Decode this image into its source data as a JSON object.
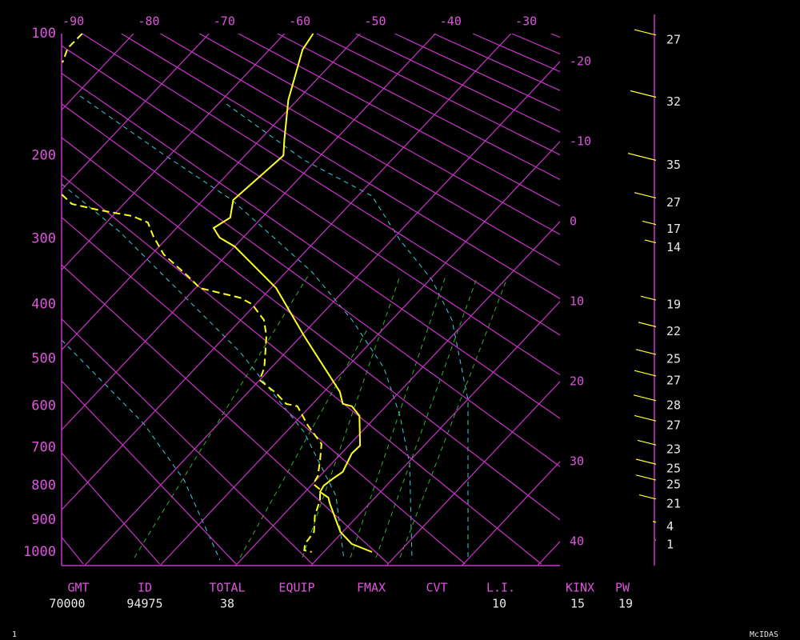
{
  "chart_data": {
    "type": "skewt",
    "ylim": [
      100,
      1045
    ],
    "yticks": [
      100,
      200,
      300,
      400,
      500,
      600,
      700,
      800,
      900,
      1000
    ],
    "xticks_top": [
      -90,
      -80,
      -70,
      -60,
      -50,
      -40,
      -30
    ],
    "xticks_right": [
      -20,
      -10,
      0,
      10,
      20,
      30,
      40
    ],
    "axis_color": "#cc33cc",
    "temperature": {
      "color": "#ffff20",
      "pressure": [
        100,
        110.5,
        148.3,
        184.6,
        200,
        226.3,
        249.7,
        271.6,
        285.2,
        298.2,
        310.5,
        373.3,
        456.3,
        568.7,
        595.3,
        600.8,
        622.6,
        694.3,
        714.7,
        762.7,
        778.1,
        800,
        817.8,
        834,
        852,
        936.3,
        974,
        1000
      ],
      "values": [
        -56.2,
        -55.6,
        -51.2,
        -46.7,
        -44.9,
        -45.5,
        -46.0,
        -44.2,
        -45.1,
        -43.1,
        -40.0,
        -29.3,
        -19.6,
        -7.9,
        -6.0,
        -4.5,
        -2.3,
        1.5,
        1.4,
        2.5,
        2.1,
        1.7,
        2.0,
        3.8,
        4.8,
        9.7,
        12.7,
        16.4
      ]
    },
    "dewpoint": {
      "color": "#ffff20",
      "pressure": [
        100,
        109.5,
        119.4,
        null,
        243.1,
        254.5,
        261.6,
        269.6,
        277.9,
        296.0,
        321.9,
        354.3,
        373.3,
        389.0,
        399.7,
        427.5,
        456.3,
        518.3,
        543.4,
        572.3,
        595.3,
        600.8,
        645.6,
        690.4,
        731.1,
        773.4,
        795.6,
        811,
        840.8,
        887.3,
        936.3,
        974,
        994.6,
        1000
      ],
      "values": [
        -86.8,
        -86.9,
        -85.8,
        null,
        -69.4,
        -66.9,
        -62.8,
        -57.4,
        -54.5,
        -52.1,
        -48.4,
        -42.5,
        -39.4,
        -32.9,
        -30.5,
        -26.9,
        -24.6,
        -20.9,
        -20.0,
        -16.1,
        -13.5,
        -11.7,
        -7.9,
        -3.8,
        -2.0,
        -0.3,
        0.1,
        1.7,
        3.0,
        4.3,
        6.2,
        6.5,
        7.2,
        8.4
      ]
    },
    "winds": {
      "color": "#ffff20",
      "pressure": [
        104,
        150,
        210,
        253,
        287,
        312,
        401,
        448,
        501,
        545,
        599,
        646,
        705,
        755,
        798,
        852,
        921,
        977
      ],
      "speeds": [
        27,
        32,
        35,
        27,
        17,
        14,
        19,
        22,
        25,
        27,
        28,
        27,
        23,
        25,
        25,
        21,
        4,
        1
      ]
    }
  },
  "table": {
    "columns": [
      {
        "label": "GMT",
        "value": 70000
      },
      {
        "label": "ID",
        "value": 94975
      },
      {
        "label": "TOTAL",
        "value": 38
      },
      {
        "label": "EQUIP"
      },
      {
        "label": "FMAX"
      },
      {
        "label": "CVT"
      },
      {
        "label": "L.I.",
        "value": 10
      },
      {
        "label": "KINX",
        "value": 15
      },
      {
        "label": "PW",
        "value": 19
      }
    ]
  },
  "footer": {
    "left": 1,
    "right": "McIDAS"
  }
}
